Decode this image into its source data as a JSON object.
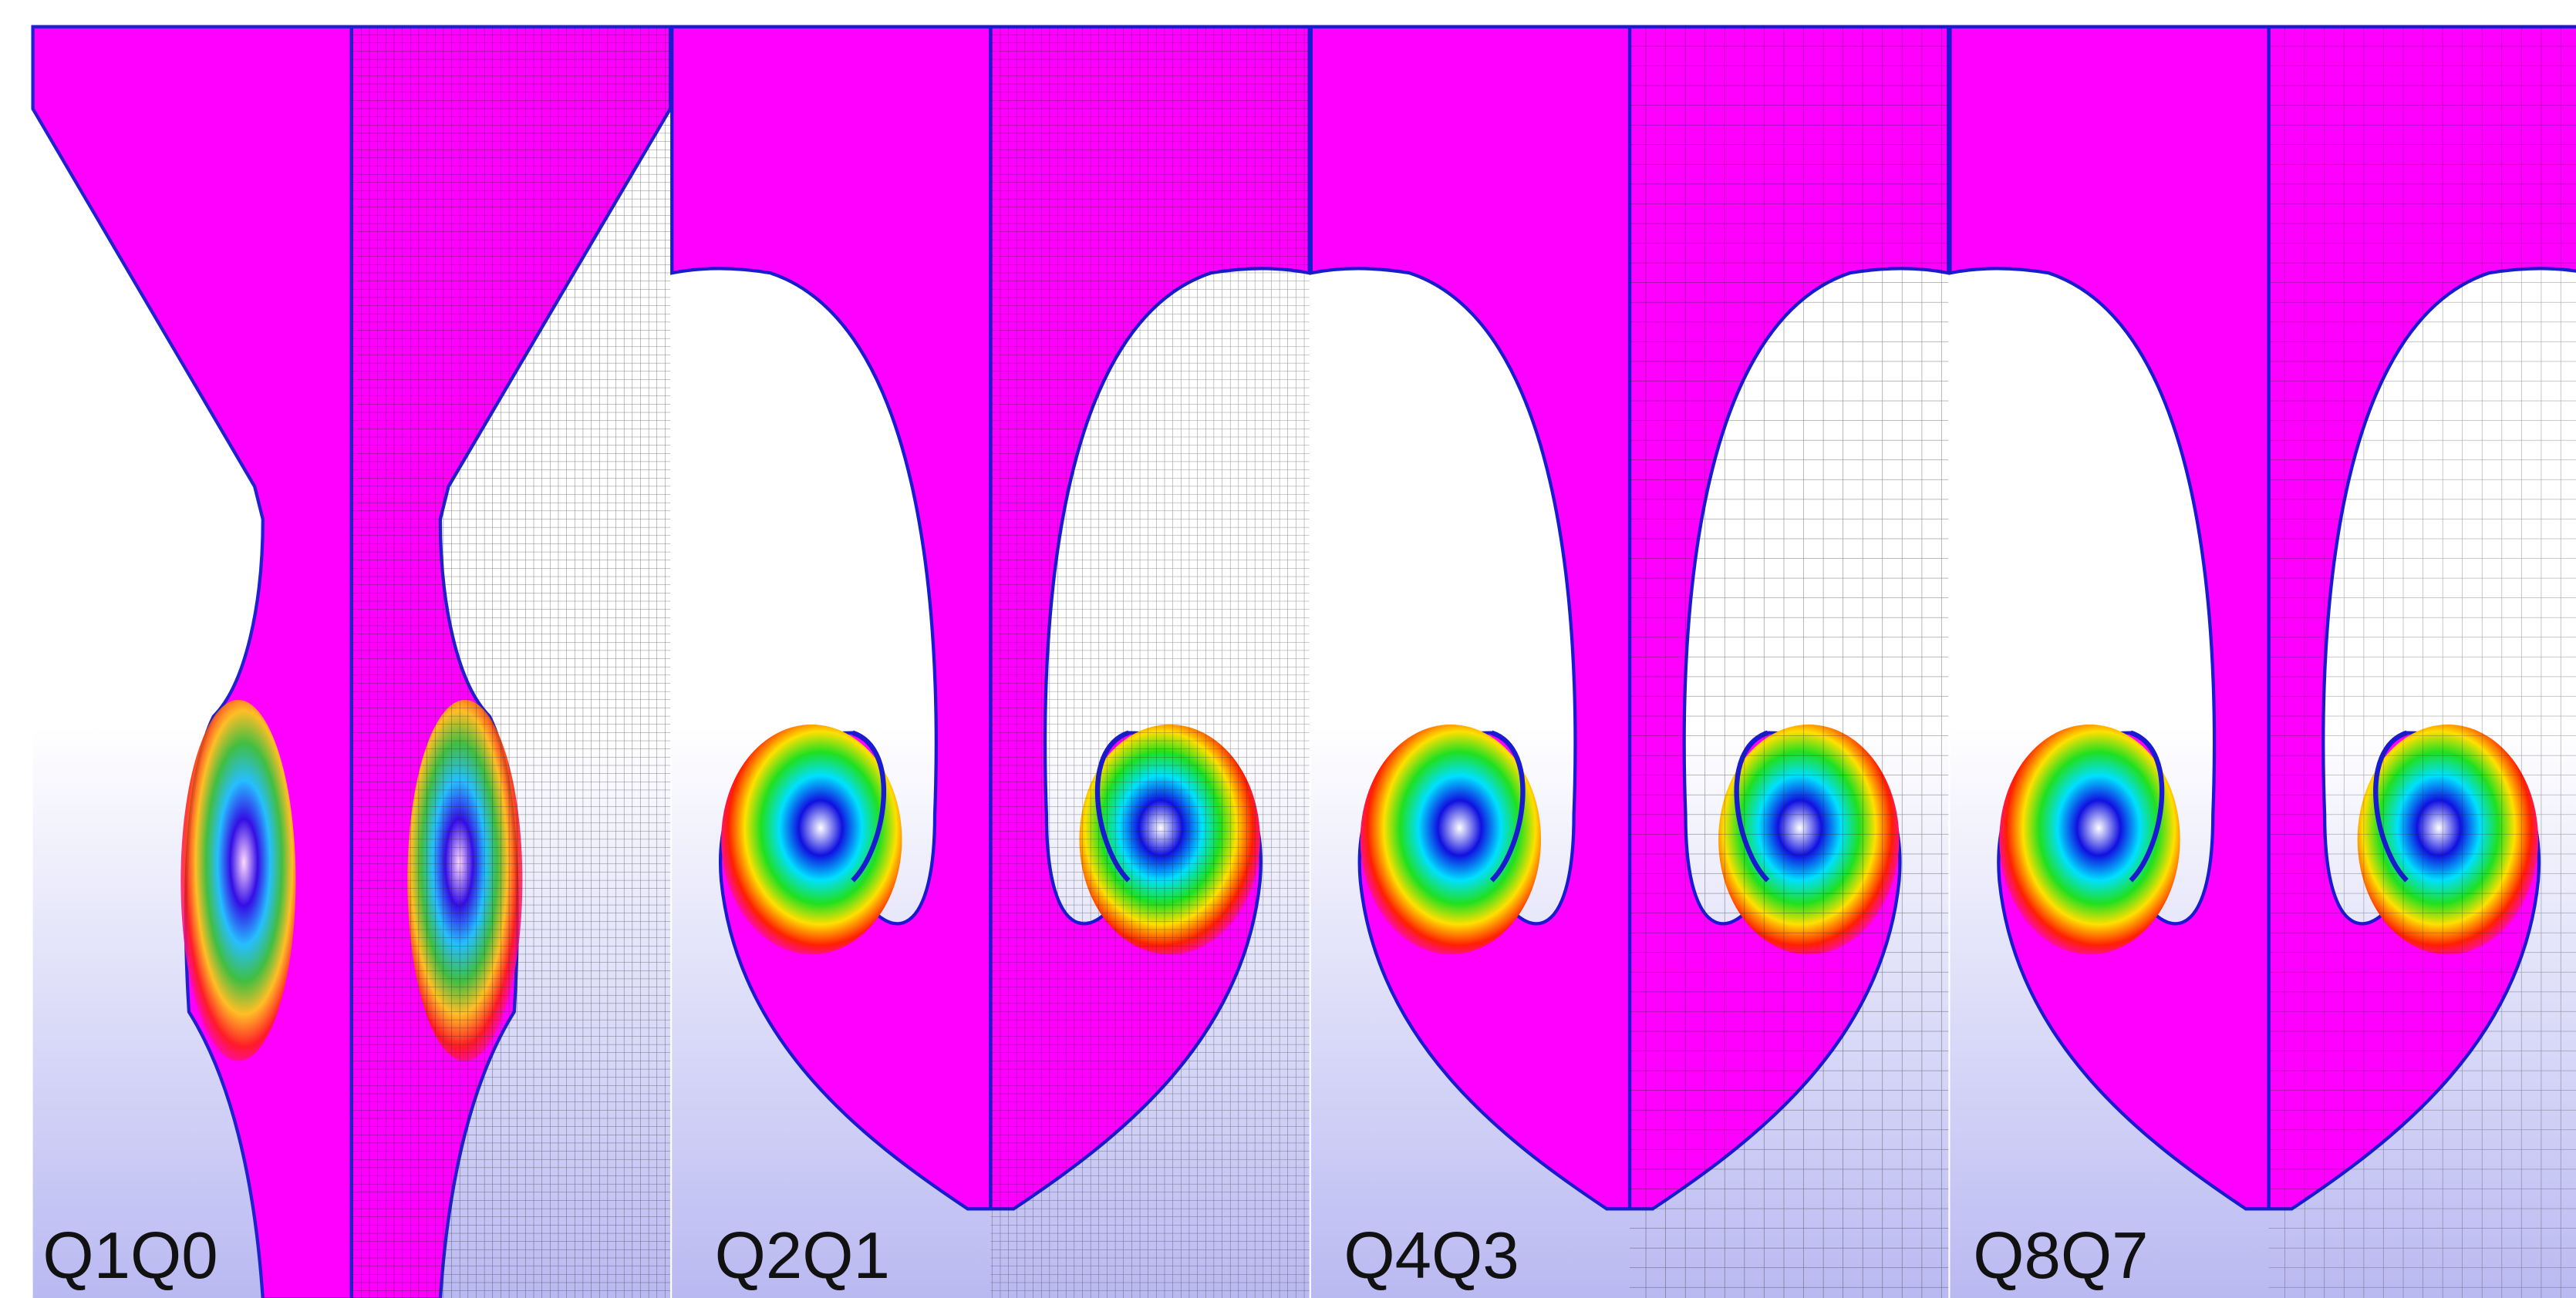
{
  "panels": [
    {
      "label": "Q1Q0"
    },
    {
      "label": "Q2Q1"
    },
    {
      "label": "Q4Q3"
    },
    {
      "label": "Q8Q7"
    }
  ]
}
